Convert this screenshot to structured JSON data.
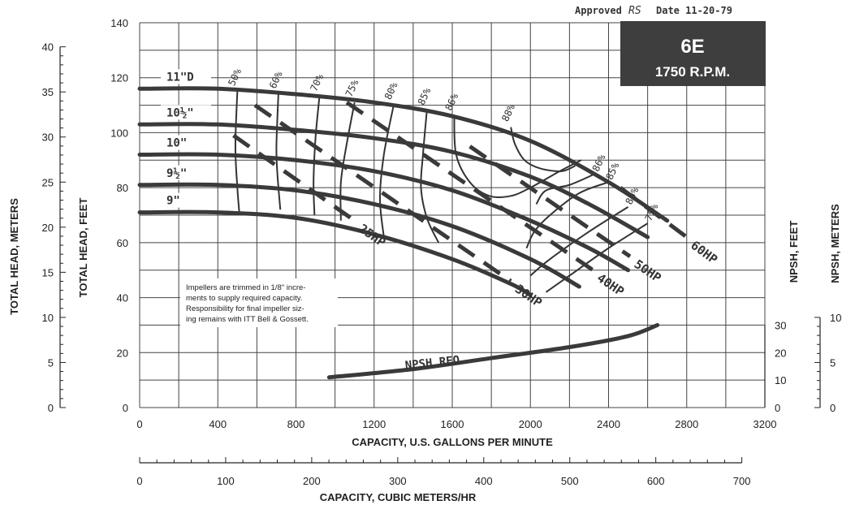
{
  "header": {
    "approved_label": "Approved",
    "approved_initials": "RS",
    "date_label": "Date 11-20-79"
  },
  "title_box": {
    "model": "6E",
    "speed": "1750 R.P.M.",
    "bg_color": "#3e3e3e"
  },
  "note_lines": [
    "Impellers are trimmed in 1/8\" incre-",
    "ments to supply required capacity.",
    "Responsibility for final impeller siz-",
    "ing remains with ITT Bell & Gossett."
  ],
  "chart_data": {
    "type": "line",
    "title": "6E 1750 R.P.M.",
    "xlabel": "CAPACITY, U.S. GALLONS PER MINUTE",
    "x2label": "CAPACITY, CUBIC METERS/HR",
    "ylabel": "TOTAL HEAD, FEET",
    "y_meters_label": "TOTAL HEAD, METERS",
    "npsh_feet_label": "NPSH, FEET",
    "npsh_meters_label": "NPSH, METERS",
    "xlim": [
      0,
      3200
    ],
    "ylim": [
      0,
      140
    ],
    "x_ticks": [
      "0",
      "400",
      "800",
      "1200",
      "1600",
      "2000",
      "2400",
      "2800",
      "3200"
    ],
    "y_ticks": [
      "0",
      "20",
      "40",
      "60",
      "80",
      "100",
      "120",
      "140"
    ],
    "y_meters_ticks": [
      "0",
      "5",
      "10",
      "15",
      "20",
      "25",
      "30",
      "35",
      "40"
    ],
    "x2_ticks": [
      "0",
      "100",
      "200",
      "300",
      "400",
      "500",
      "600",
      "700"
    ],
    "npsh_feet_ticks": [
      "0",
      "10",
      "20",
      "30"
    ],
    "npsh_meters_ticks": [
      "0",
      "5",
      "10"
    ],
    "grid": true,
    "impeller_curves": [
      {
        "label": "11\"D",
        "points": [
          [
            0,
            116
          ],
          [
            400,
            116
          ],
          [
            800,
            114
          ],
          [
            1200,
            111
          ],
          [
            1600,
            106
          ],
          [
            2000,
            97
          ],
          [
            2400,
            82
          ],
          [
            2700,
            68
          ]
        ]
      },
      {
        "label": "10½\"",
        "points": [
          [
            0,
            103
          ],
          [
            400,
            103
          ],
          [
            800,
            101
          ],
          [
            1200,
            98
          ],
          [
            1600,
            93
          ],
          [
            2000,
            84
          ],
          [
            2300,
            74
          ],
          [
            2600,
            62
          ]
        ]
      },
      {
        "label": "10\"",
        "points": [
          [
            0,
            92
          ],
          [
            400,
            92
          ],
          [
            800,
            90
          ],
          [
            1200,
            86
          ],
          [
            1600,
            79
          ],
          [
            2000,
            68
          ],
          [
            2300,
            58
          ],
          [
            2500,
            50
          ]
        ]
      },
      {
        "label": "9½\"",
        "points": [
          [
            0,
            81
          ],
          [
            400,
            81
          ],
          [
            800,
            79
          ],
          [
            1200,
            74
          ],
          [
            1600,
            66
          ],
          [
            2000,
            54
          ],
          [
            2250,
            44
          ]
        ]
      },
      {
        "label": "9\"",
        "points": [
          [
            0,
            71
          ],
          [
            400,
            71
          ],
          [
            800,
            69
          ],
          [
            1200,
            63
          ],
          [
            1600,
            54
          ],
          [
            1900,
            45
          ],
          [
            2000,
            41
          ]
        ]
      }
    ],
    "efficiency_curves": [
      {
        "label": "50%",
        "points": [
          [
            500,
            115
          ],
          [
            490,
            95
          ],
          [
            500,
            80
          ],
          [
            510,
            71
          ]
        ]
      },
      {
        "label": "60%",
        "points": [
          [
            710,
            114
          ],
          [
            700,
            95
          ],
          [
            705,
            85
          ],
          [
            720,
            72
          ]
        ]
      },
      {
        "label": "70%",
        "points": [
          [
            920,
            113
          ],
          [
            900,
            98
          ],
          [
            890,
            82
          ],
          [
            895,
            70
          ]
        ]
      },
      {
        "label": "75%",
        "points": [
          [
            1100,
            111
          ],
          [
            1060,
            96
          ],
          [
            1030,
            82
          ],
          [
            1030,
            68
          ]
        ]
      },
      {
        "label": "80%",
        "points": [
          [
            1300,
            110
          ],
          [
            1250,
            92
          ],
          [
            1230,
            76
          ],
          [
            1250,
            62
          ]
        ]
      },
      {
        "label": "85%",
        "points": [
          [
            1470,
            108
          ],
          [
            1450,
            92
          ],
          [
            1440,
            80
          ],
          [
            1470,
            69
          ],
          [
            1530,
            60
          ]
        ]
      },
      {
        "label": "86%",
        "points": [
          [
            1610,
            106
          ],
          [
            1620,
            92
          ],
          [
            1690,
            82
          ],
          [
            1790,
            77
          ],
          [
            1900,
            77
          ],
          [
            2000,
            80
          ],
          [
            2150,
            86
          ],
          [
            2260,
            90
          ]
        ]
      },
      {
        "label": "88%",
        "points": [
          [
            1900,
            102
          ],
          [
            1920,
            96
          ],
          [
            1970,
            90
          ],
          [
            2050,
            87
          ],
          [
            2160,
            86
          ],
          [
            2230,
            88
          ]
        ]
      },
      {
        "label": "86%",
        "points": [
          [
            2330,
            85
          ],
          [
            2200,
            81
          ],
          [
            2080,
            79
          ],
          [
            2030,
            74
          ]
        ]
      },
      {
        "label": "85%",
        "points": [
          [
            2400,
            82
          ],
          [
            2250,
            78
          ],
          [
            2100,
            70
          ],
          [
            2020,
            64
          ],
          [
            1980,
            58
          ]
        ]
      },
      {
        "label": "80%",
        "points": [
          [
            2500,
            73
          ],
          [
            2300,
            64
          ],
          [
            2100,
            54
          ],
          [
            2000,
            48
          ]
        ]
      },
      {
        "label": "75%",
        "points": [
          [
            2600,
            67
          ],
          [
            2400,
            58
          ],
          [
            2200,
            48
          ],
          [
            2080,
            42
          ]
        ]
      }
    ],
    "power_lines": [
      {
        "label": "25HP",
        "points": [
          [
            480,
            99
          ],
          [
            1100,
            68
          ]
        ]
      },
      {
        "label": "30HP",
        "points": [
          [
            590,
            110
          ],
          [
            1900,
            46
          ]
        ]
      },
      {
        "label": "40HP",
        "points": [
          [
            1060,
            111
          ],
          [
            2320,
            50
          ]
        ]
      },
      {
        "label": "50HP",
        "points": [
          [
            1690,
            95
          ],
          [
            2510,
            55
          ]
        ]
      },
      {
        "label": "60HP",
        "points": [
          [
            2460,
            80
          ],
          [
            2800,
            62
          ]
        ]
      }
    ],
    "npsh_req": {
      "label": "NPSH REQ",
      "points": [
        [
          970,
          11
        ],
        [
          1400,
          14
        ],
        [
          1800,
          18
        ],
        [
          2200,
          22
        ],
        [
          2500,
          26
        ],
        [
          2650,
          30
        ]
      ]
    }
  }
}
